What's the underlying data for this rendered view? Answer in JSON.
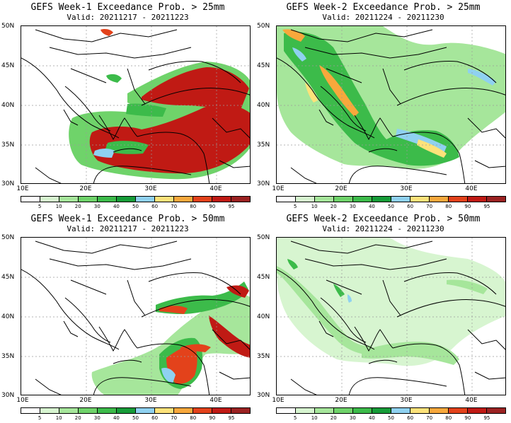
{
  "panels": [
    {
      "title": "GEFS Week-1 Exceedance Prob. > 25mm",
      "valid": "Valid: 20211217 - 20211223"
    },
    {
      "title": "GEFS Week-2 Exceedance Prob. > 25mm",
      "valid": "Valid: 20211224 - 20211230"
    },
    {
      "title": "GEFS Week-1 Exceedance Prob. > 50mm",
      "valid": "Valid: 20211217 - 20211223"
    },
    {
      "title": "GEFS Week-2 Exceedance Prob. > 50mm",
      "valid": "Valid: 20211224 - 20211230"
    }
  ],
  "lat_labels": [
    "50N",
    "45N",
    "40N",
    "35N",
    "30N"
  ],
  "lon_labels": [
    "10E",
    "20E",
    "30E",
    "40E"
  ],
  "colorbar": {
    "levels": [
      "5",
      "10",
      "20",
      "30",
      "40",
      "50",
      "60",
      "70",
      "80",
      "90",
      "95"
    ],
    "colors": [
      "#ffffff",
      "#d7f5d0",
      "#a6e69b",
      "#6fd36a",
      "#3cbb4a",
      "#169c38",
      "#8fd1f0",
      "#fde27a",
      "#f8a83c",
      "#e3421b",
      "#c01a14",
      "#9b2222"
    ]
  }
}
